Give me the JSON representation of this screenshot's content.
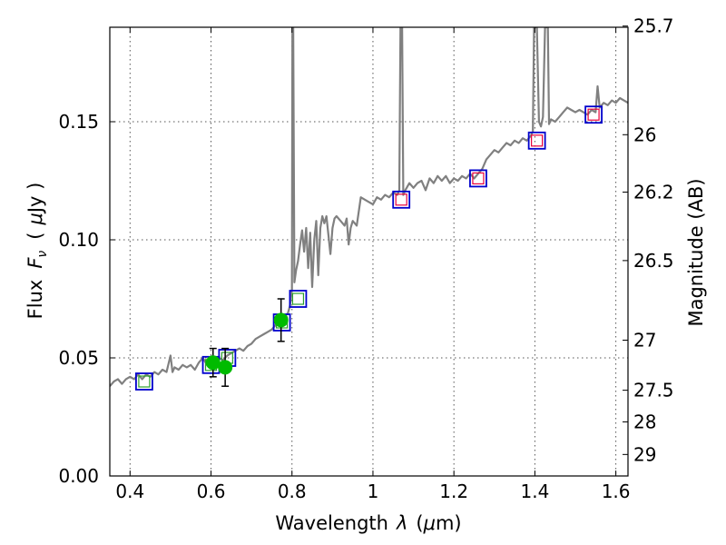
{
  "chart_data": {
    "type": "line",
    "title": "",
    "xlabel": "Wavelength",
    "xlabel_symbol": "λ",
    "xlabel_unit_open": "(",
    "xlabel_unit_mu": "μ",
    "xlabel_unit_rest": "m)",
    "ylabel": "Flux",
    "ylabel_symbol": "F",
    "ylabel_subscript": "ν",
    "ylabel_unit_open": "(",
    "ylabel_unit_mu": "μ",
    "ylabel_unit_rest": "Jy )",
    "y2label": "Magnitude (AB)",
    "xlim": [
      0.35,
      1.63
    ],
    "ylim": [
      0.0,
      0.19
    ],
    "xticks": [
      0.4,
      0.6,
      0.8,
      1.0,
      1.2,
      1.4,
      1.6
    ],
    "xtick_labels": [
      "0.4",
      "0.6",
      "0.8",
      "1",
      "1.2",
      "1.4",
      "1.6"
    ],
    "yticks": [
      0.0,
      0.05,
      0.1,
      0.15
    ],
    "ytick_labels": [
      "0.00",
      "0.05",
      "0.10",
      "0.15"
    ],
    "y2ticks": [
      {
        "label": "25.7",
        "flux": 0.1905
      },
      {
        "label": "26",
        "flux": 0.1445
      },
      {
        "label": "26.2",
        "flux": 0.1202
      },
      {
        "label": "26.5",
        "flux": 0.0912
      },
      {
        "label": "27",
        "flux": 0.0575
      },
      {
        "label": "27.5",
        "flux": 0.0363
      },
      {
        "label": "28",
        "flux": 0.0229
      },
      {
        "label": "29",
        "flux": 0.0091
      }
    ],
    "grid": true,
    "colors": {
      "model": "#808080",
      "box": "#0000cc",
      "inner_model": "#2ca02c",
      "inner_red": "#e8003a",
      "measured": "#00bb00",
      "errorbar": "#000000"
    },
    "series": [
      {
        "name": "model_sed",
        "style": "line",
        "points": [
          [
            0.35,
            0.038
          ],
          [
            0.36,
            0.04
          ],
          [
            0.37,
            0.041
          ],
          [
            0.38,
            0.039
          ],
          [
            0.39,
            0.041
          ],
          [
            0.4,
            0.042
          ],
          [
            0.41,
            0.041
          ],
          [
            0.42,
            0.043
          ],
          [
            0.43,
            0.041
          ],
          [
            0.44,
            0.043
          ],
          [
            0.45,
            0.042
          ],
          [
            0.46,
            0.044
          ],
          [
            0.47,
            0.043
          ],
          [
            0.48,
            0.045
          ],
          [
            0.49,
            0.044
          ],
          [
            0.5,
            0.051
          ],
          [
            0.505,
            0.044
          ],
          [
            0.51,
            0.046
          ],
          [
            0.52,
            0.045
          ],
          [
            0.53,
            0.047
          ],
          [
            0.54,
            0.046
          ],
          [
            0.55,
            0.047
          ],
          [
            0.56,
            0.045
          ],
          [
            0.57,
            0.048
          ],
          [
            0.58,
            0.05
          ],
          [
            0.59,
            0.047
          ],
          [
            0.6,
            0.049
          ],
          [
            0.61,
            0.048
          ],
          [
            0.62,
            0.05
          ],
          [
            0.63,
            0.049
          ],
          [
            0.64,
            0.051
          ],
          [
            0.65,
            0.052
          ],
          [
            0.66,
            0.053
          ],
          [
            0.67,
            0.054
          ],
          [
            0.68,
            0.053
          ],
          [
            0.69,
            0.055
          ],
          [
            0.7,
            0.056
          ],
          [
            0.71,
            0.058
          ],
          [
            0.72,
            0.059
          ],
          [
            0.73,
            0.06
          ],
          [
            0.74,
            0.061
          ],
          [
            0.75,
            0.062
          ],
          [
            0.76,
            0.064
          ],
          [
            0.77,
            0.066
          ],
          [
            0.78,
            0.067
          ],
          [
            0.79,
            0.069
          ],
          [
            0.795,
            0.072
          ],
          [
            0.8,
            0.079
          ],
          [
            0.801,
            0.19
          ],
          [
            0.803,
            0.19
          ],
          [
            0.806,
            0.082
          ],
          [
            0.81,
            0.087
          ],
          [
            0.815,
            0.091
          ],
          [
            0.82,
            0.098
          ],
          [
            0.825,
            0.104
          ],
          [
            0.83,
            0.095
          ],
          [
            0.835,
            0.105
          ],
          [
            0.84,
            0.088
          ],
          [
            0.845,
            0.103
          ],
          [
            0.85,
            0.08
          ],
          [
            0.855,
            0.1
          ],
          [
            0.86,
            0.108
          ],
          [
            0.865,
            0.085
          ],
          [
            0.87,
            0.105
          ],
          [
            0.875,
            0.11
          ],
          [
            0.88,
            0.107
          ],
          [
            0.885,
            0.11
          ],
          [
            0.89,
            0.102
          ],
          [
            0.895,
            0.094
          ],
          [
            0.9,
            0.105
          ],
          [
            0.905,
            0.109
          ],
          [
            0.91,
            0.11
          ],
          [
            0.92,
            0.108
          ],
          [
            0.93,
            0.106
          ],
          [
            0.935,
            0.109
          ],
          [
            0.94,
            0.098
          ],
          [
            0.945,
            0.105
          ],
          [
            0.95,
            0.108
          ],
          [
            0.96,
            0.106
          ],
          [
            0.97,
            0.118
          ],
          [
            0.98,
            0.117
          ],
          [
            0.99,
            0.116
          ],
          [
            1.0,
            0.115
          ],
          [
            1.01,
            0.118
          ],
          [
            1.02,
            0.117
          ],
          [
            1.03,
            0.119
          ],
          [
            1.04,
            0.118
          ],
          [
            1.05,
            0.12
          ],
          [
            1.06,
            0.119
          ],
          [
            1.065,
            0.121
          ],
          [
            1.068,
            0.19
          ],
          [
            1.072,
            0.19
          ],
          [
            1.075,
            0.119
          ],
          [
            1.08,
            0.121
          ],
          [
            1.09,
            0.124
          ],
          [
            1.1,
            0.122
          ],
          [
            1.11,
            0.124
          ],
          [
            1.12,
            0.125
          ],
          [
            1.13,
            0.121
          ],
          [
            1.14,
            0.126
          ],
          [
            1.15,
            0.124
          ],
          [
            1.16,
            0.127
          ],
          [
            1.17,
            0.125
          ],
          [
            1.18,
            0.127
          ],
          [
            1.19,
            0.124
          ],
          [
            1.2,
            0.126
          ],
          [
            1.21,
            0.125
          ],
          [
            1.22,
            0.127
          ],
          [
            1.23,
            0.126
          ],
          [
            1.24,
            0.128
          ],
          [
            1.25,
            0.126
          ],
          [
            1.26,
            0.128
          ],
          [
            1.27,
            0.13
          ],
          [
            1.28,
            0.134
          ],
          [
            1.29,
            0.136
          ],
          [
            1.3,
            0.138
          ],
          [
            1.31,
            0.137
          ],
          [
            1.32,
            0.139
          ],
          [
            1.33,
            0.141
          ],
          [
            1.34,
            0.14
          ],
          [
            1.35,
            0.142
          ],
          [
            1.36,
            0.141
          ],
          [
            1.37,
            0.143
          ],
          [
            1.38,
            0.142
          ],
          [
            1.39,
            0.144
          ],
          [
            1.395,
            0.146
          ],
          [
            1.398,
            0.19
          ],
          [
            1.405,
            0.19
          ],
          [
            1.41,
            0.15
          ],
          [
            1.415,
            0.148
          ],
          [
            1.42,
            0.152
          ],
          [
            1.425,
            0.19
          ],
          [
            1.432,
            0.19
          ],
          [
            1.435,
            0.149
          ],
          [
            1.44,
            0.151
          ],
          [
            1.45,
            0.15
          ],
          [
            1.46,
            0.152
          ],
          [
            1.47,
            0.154
          ],
          [
            1.48,
            0.156
          ],
          [
            1.49,
            0.155
          ],
          [
            1.5,
            0.154
          ],
          [
            1.51,
            0.155
          ],
          [
            1.52,
            0.154
          ],
          [
            1.53,
            0.153
          ],
          [
            1.54,
            0.155
          ],
          [
            1.55,
            0.154
          ],
          [
            1.555,
            0.165
          ],
          [
            1.56,
            0.156
          ],
          [
            1.57,
            0.158
          ],
          [
            1.58,
            0.157
          ],
          [
            1.59,
            0.159
          ],
          [
            1.6,
            0.158
          ],
          [
            1.61,
            0.16
          ],
          [
            1.62,
            0.159
          ],
          [
            1.63,
            0.158
          ]
        ]
      },
      {
        "name": "model_photometry",
        "style": "square",
        "points": [
          {
            "x": 0.435,
            "y": 0.04,
            "inner": "green"
          },
          {
            "x": 0.6,
            "y": 0.047,
            "inner": "green"
          },
          {
            "x": 0.64,
            "y": 0.05,
            "inner": "green"
          },
          {
            "x": 0.775,
            "y": 0.065,
            "inner": "green"
          },
          {
            "x": 0.815,
            "y": 0.075,
            "inner": "green"
          },
          {
            "x": 1.07,
            "y": 0.117,
            "inner": "red"
          },
          {
            "x": 1.26,
            "y": 0.126,
            "inner": "red"
          },
          {
            "x": 1.405,
            "y": 0.142,
            "inner": "red"
          },
          {
            "x": 1.545,
            "y": 0.153,
            "inner": "red"
          }
        ]
      },
      {
        "name": "observed_photometry",
        "style": "circle",
        "points": [
          {
            "x": 0.605,
            "y": 0.048,
            "err": 0.006
          },
          {
            "x": 0.635,
            "y": 0.046,
            "err": 0.008
          },
          {
            "x": 0.773,
            "y": 0.066,
            "err": 0.009
          }
        ]
      }
    ]
  }
}
